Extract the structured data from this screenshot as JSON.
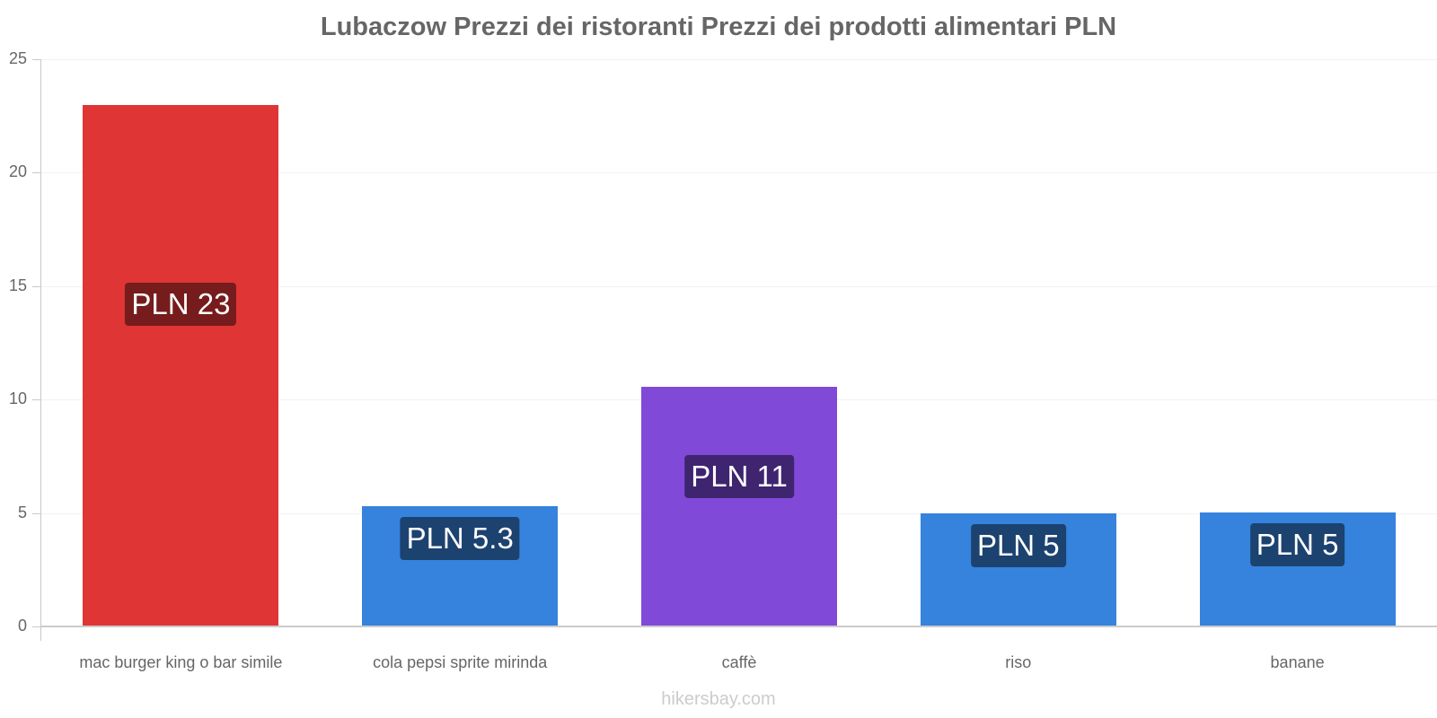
{
  "title": "Lubaczow Prezzi dei ristoranti Prezzi dei prodotti alimentari PLN",
  "watermark": "hikersbay.com",
  "yaxis": {
    "ticks": [
      "0",
      "5",
      "10",
      "15",
      "20",
      "25"
    ]
  },
  "bars": [
    {
      "category": "mac burger king o bar simile",
      "label": "PLN 23",
      "value": 23,
      "color": "#e03535",
      "label_bg": "#761c1c"
    },
    {
      "category": "cola pepsi sprite mirinda",
      "label": "PLN 5.3",
      "value": 5.3,
      "color": "#3583dd",
      "label_bg": "#1c4270"
    },
    {
      "category": "caffè",
      "label": "PLN 11",
      "value": 10.55,
      "color": "#8049d8",
      "label_bg": "#3f2570"
    },
    {
      "category": "riso",
      "label": "PLN 5",
      "value": 5.0,
      "color": "#3583dd",
      "label_bg": "#1c4270"
    },
    {
      "category": "banane",
      "label": "PLN 5",
      "value": 5.03,
      "color": "#3583dd",
      "label_bg": "#1c4270"
    }
  ],
  "chart_data": {
    "type": "bar",
    "title": "Lubaczow Prezzi dei ristoranti Prezzi dei prodotti alimentari PLN",
    "categories": [
      "mac burger king o bar simile",
      "cola pepsi sprite mirinda",
      "caffè",
      "riso",
      "banane"
    ],
    "values": [
      23,
      5.3,
      10.55,
      5.0,
      5.03
    ],
    "data_labels": [
      "PLN 23",
      "PLN 5.3",
      "PLN 11",
      "PLN 5",
      "PLN 5"
    ],
    "xlabel": "",
    "ylabel": "",
    "ylim": [
      0,
      25
    ],
    "yticks": [
      0,
      5,
      10,
      15,
      20,
      25
    ],
    "grid": true,
    "legend": null,
    "colors": [
      "#e03535",
      "#3583dd",
      "#8049d8",
      "#3583dd",
      "#3583dd"
    ]
  }
}
